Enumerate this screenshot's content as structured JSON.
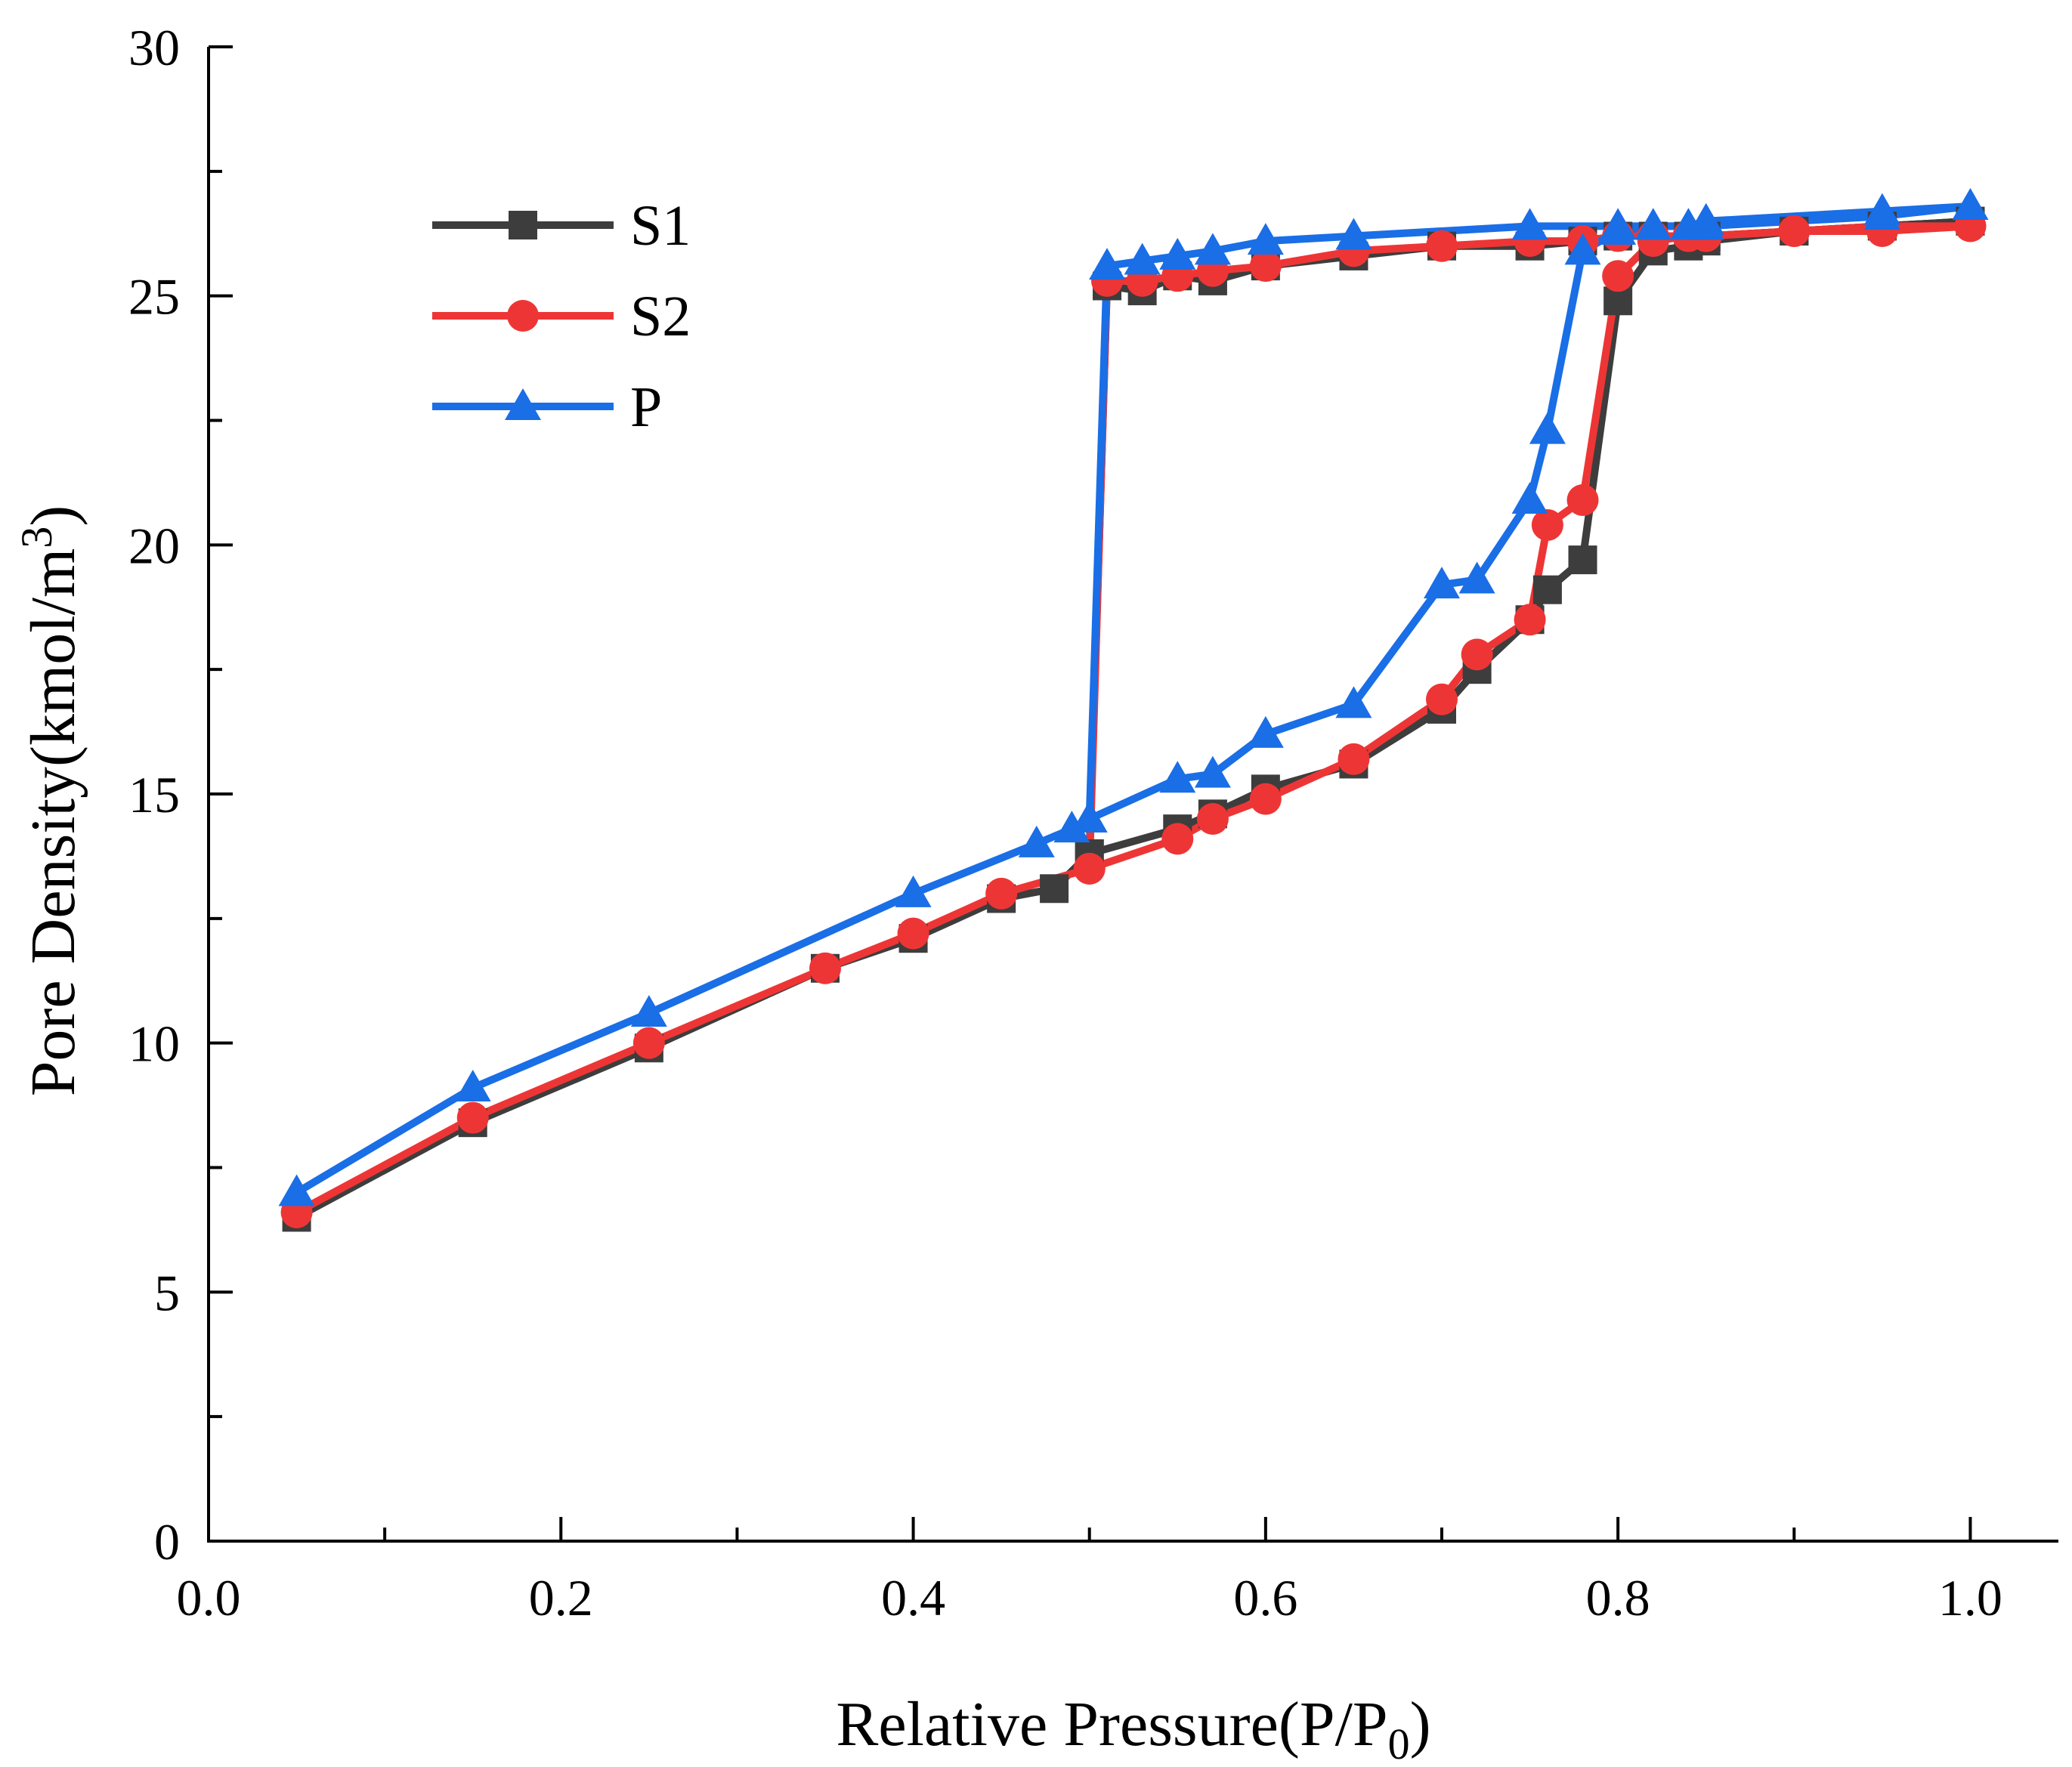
{
  "chart_data": {
    "type": "line",
    "title": "",
    "xlabel": "Relative Pressure(P/P",
    "xlabel_sub": "0",
    "xlabel_tail": ")",
    "ylabel": "Pore Density(kmol/m",
    "ylabel_sup": "3",
    "ylabel_tail": ")",
    "xlim": [
      0.0,
      1.05
    ],
    "ylim": [
      0,
      30
    ],
    "xticks": [
      "0.0",
      "0.2",
      "0.4",
      "0.6",
      "0.8",
      "1.0"
    ],
    "xtick_values": [
      0.0,
      0.2,
      0.4,
      0.6,
      0.8,
      1.0
    ],
    "yticks": [
      "0",
      "5",
      "10",
      "15",
      "20",
      "25",
      "30"
    ],
    "ytick_values": [
      0,
      5,
      10,
      15,
      20,
      25,
      30
    ],
    "grid": false,
    "legend_position": "top-left",
    "series": [
      {
        "name": "S1",
        "color": "#3d3d3d",
        "marker": "square",
        "branches": [
          {
            "x": [
              0.05,
              0.15,
              0.25,
              0.35,
              0.4,
              0.45,
              0.48,
              0.5,
              0.55,
              0.57,
              0.6,
              0.65,
              0.7,
              0.72,
              0.75,
              0.76,
              0.78,
              0.8,
              0.82,
              0.84,
              0.85,
              0.9,
              0.95,
              1.0
            ],
            "y": [
              6.5,
              8.4,
              9.9,
              11.5,
              12.1,
              12.9,
              13.1,
              13.8,
              14.3,
              14.6,
              15.1,
              15.6,
              16.7,
              17.5,
              18.5,
              19.1,
              19.7,
              24.9,
              25.9,
              26.0,
              26.1,
              26.3,
              26.4,
              26.5
            ]
          },
          {
            "x": [
              1.0,
              0.95,
              0.9,
              0.85,
              0.84,
              0.82,
              0.8,
              0.78,
              0.75,
              0.7,
              0.65,
              0.6,
              0.57,
              0.55,
              0.53,
              0.51,
              0.5
            ],
            "y": [
              26.5,
              26.4,
              26.3,
              26.2,
              26.2,
              26.2,
              26.2,
              26.1,
              26.0,
              26.0,
              25.8,
              25.6,
              25.3,
              25.4,
              25.1,
              25.2,
              13.8
            ]
          }
        ]
      },
      {
        "name": "S2",
        "color": "#ee3535",
        "marker": "circle",
        "branches": [
          {
            "x": [
              0.05,
              0.15,
              0.25,
              0.35,
              0.4,
              0.45,
              0.5,
              0.55,
              0.57,
              0.6,
              0.65,
              0.7,
              0.72,
              0.75,
              0.76,
              0.78,
              0.8,
              0.82,
              0.84,
              0.85,
              0.9,
              0.95,
              1.0
            ],
            "y": [
              6.6,
              8.5,
              10.0,
              11.5,
              12.2,
              13.0,
              13.5,
              14.1,
              14.5,
              14.9,
              15.7,
              16.9,
              17.8,
              18.5,
              20.4,
              20.9,
              25.4,
              26.1,
              26.2,
              26.2,
              26.3,
              26.3,
              26.4
            ]
          },
          {
            "x": [
              1.0,
              0.95,
              0.9,
              0.85,
              0.84,
              0.82,
              0.8,
              0.78,
              0.75,
              0.7,
              0.65,
              0.6,
              0.57,
              0.55,
              0.53,
              0.51,
              0.5
            ],
            "y": [
              26.4,
              26.4,
              26.3,
              26.2,
              26.2,
              26.2,
              26.2,
              26.1,
              26.1,
              26.0,
              25.9,
              25.6,
              25.5,
              25.4,
              25.3,
              25.3,
              13.5
            ]
          }
        ]
      },
      {
        "name": "P",
        "color": "#1a6ee6",
        "marker": "triangle",
        "branches": [
          {
            "x": [
              0.05,
              0.15,
              0.25,
              0.4,
              0.47,
              0.49,
              0.5,
              0.55,
              0.57,
              0.6,
              0.65,
              0.7,
              0.72,
              0.75,
              0.76,
              0.78,
              0.8,
              0.82,
              0.84,
              0.85,
              0.95,
              1.0
            ],
            "y": [
              7.0,
              9.1,
              10.6,
              13.0,
              14.0,
              14.3,
              14.5,
              15.3,
              15.4,
              16.2,
              16.8,
              19.2,
              19.3,
              20.9,
              22.3,
              25.9,
              26.3,
              26.4,
              26.4,
              26.5,
              26.7,
              26.8
            ]
          },
          {
            "x": [
              1.0,
              0.95,
              0.85,
              0.84,
              0.82,
              0.8,
              0.75,
              0.65,
              0.6,
              0.57,
              0.55,
              0.53,
              0.51,
              0.5
            ],
            "y": [
              26.8,
              26.6,
              26.4,
              26.4,
              26.4,
              26.4,
              26.4,
              26.2,
              26.1,
              25.9,
              25.8,
              25.7,
              25.6,
              14.5
            ]
          }
        ]
      }
    ]
  }
}
